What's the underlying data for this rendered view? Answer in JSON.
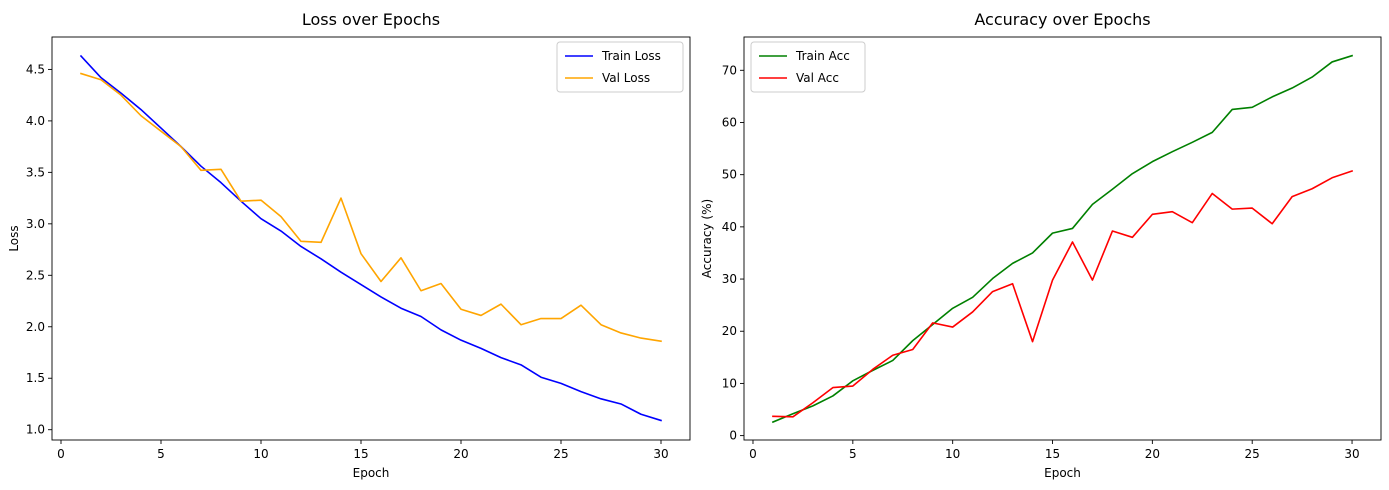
{
  "chart_data": [
    {
      "type": "line",
      "title": "Loss over Epochs",
      "xlabel": "Epoch",
      "ylabel": "Loss",
      "xlim": [
        -0.45,
        31.45
      ],
      "ylim": [
        0.9,
        4.815
      ],
      "xticks": [
        0,
        5,
        10,
        15,
        20,
        25,
        30
      ],
      "yticks": [
        1.0,
        1.5,
        2.0,
        2.5,
        3.0,
        3.5,
        4.0,
        4.5
      ],
      "ytick_decimals": 1,
      "legend": "top-right",
      "grid": false,
      "x": [
        1,
        2,
        3,
        4,
        5,
        6,
        7,
        8,
        9,
        10,
        11,
        12,
        13,
        14,
        15,
        16,
        17,
        18,
        19,
        20,
        21,
        22,
        23,
        24,
        25,
        26,
        27,
        28,
        29,
        30
      ],
      "series": [
        {
          "name": "Train Loss",
          "color": "#0000ff",
          "values": [
            4.63,
            4.42,
            4.27,
            4.11,
            3.93,
            3.75,
            3.56,
            3.4,
            3.22,
            3.05,
            2.93,
            2.78,
            2.66,
            2.53,
            2.41,
            2.29,
            2.18,
            2.1,
            1.97,
            1.87,
            1.79,
            1.7,
            1.63,
            1.51,
            1.45,
            1.37,
            1.3,
            1.25,
            1.15,
            1.09
          ]
        },
        {
          "name": "Val Loss",
          "color": "#ffa500",
          "values": [
            4.46,
            4.4,
            4.25,
            4.05,
            3.9,
            3.75,
            3.52,
            3.53,
            3.22,
            3.23,
            3.07,
            2.83,
            2.82,
            3.25,
            2.71,
            2.44,
            2.67,
            2.35,
            2.42,
            2.17,
            2.11,
            2.22,
            2.02,
            2.08,
            2.08,
            2.21,
            2.02,
            1.94,
            1.89,
            1.86
          ]
        }
      ]
    },
    {
      "type": "line",
      "title": "Accuracy over Epochs",
      "xlabel": "Epoch",
      "ylabel": "Accuracy (%)",
      "xlim": [
        -0.45,
        31.45
      ],
      "ylim": [
        -0.84,
        76.38
      ],
      "xticks": [
        0,
        5,
        10,
        15,
        20,
        25,
        30
      ],
      "yticks": [
        0,
        10,
        20,
        30,
        40,
        50,
        60,
        70
      ],
      "ytick_decimals": 0,
      "legend": "top-left",
      "grid": false,
      "x": [
        1,
        2,
        3,
        4,
        5,
        6,
        7,
        8,
        9,
        10,
        11,
        12,
        13,
        14,
        15,
        16,
        17,
        18,
        19,
        20,
        21,
        22,
        23,
        24,
        25,
        26,
        27,
        28,
        29,
        30
      ],
      "series": [
        {
          "name": "Train Acc",
          "color": "#008000",
          "values": [
            2.6,
            4.2,
            5.7,
            7.6,
            10.5,
            12.5,
            14.4,
            18.2,
            21.3,
            24.4,
            26.5,
            30.1,
            33.0,
            35.0,
            38.8,
            39.7,
            44.3,
            47.2,
            50.2,
            52.5,
            54.4,
            56.2,
            58.1,
            62.5,
            62.9,
            64.9,
            66.6,
            68.7,
            71.6,
            72.8
          ]
        },
        {
          "name": "Val Acc",
          "color": "#ff0000",
          "values": [
            3.7,
            3.6,
            6.3,
            9.2,
            9.5,
            12.7,
            15.4,
            16.5,
            21.6,
            20.8,
            23.7,
            27.6,
            29.1,
            18.0,
            29.8,
            37.1,
            29.8,
            39.2,
            38.0,
            42.4,
            42.9,
            40.8,
            46.4,
            43.4,
            43.6,
            40.6,
            45.8,
            47.3,
            49.4,
            50.7
          ]
        }
      ]
    }
  ]
}
